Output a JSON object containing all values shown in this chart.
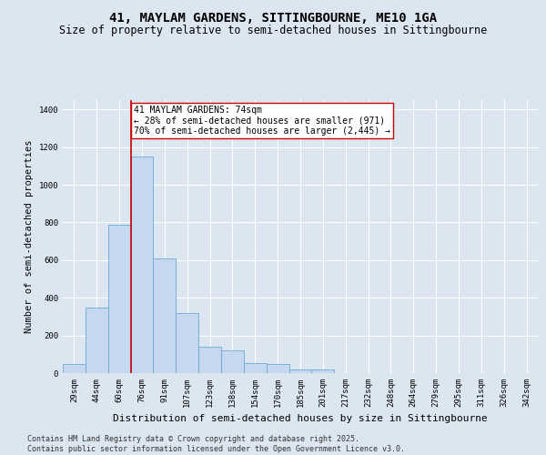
{
  "title": "41, MAYLAM GARDENS, SITTINGBOURNE, ME10 1GA",
  "subtitle": "Size of property relative to semi-detached houses in Sittingbourne",
  "xlabel": "Distribution of semi-detached houses by size in Sittingbourne",
  "ylabel": "Number of semi-detached properties",
  "categories": [
    "29sqm",
    "44sqm",
    "60sqm",
    "76sqm",
    "91sqm",
    "107sqm",
    "123sqm",
    "138sqm",
    "154sqm",
    "170sqm",
    "185sqm",
    "201sqm",
    "217sqm",
    "232sqm",
    "248sqm",
    "264sqm",
    "279sqm",
    "295sqm",
    "311sqm",
    "326sqm",
    "342sqm"
  ],
  "values": [
    50,
    350,
    790,
    1150,
    610,
    320,
    140,
    120,
    55,
    50,
    20,
    20,
    0,
    0,
    0,
    0,
    0,
    0,
    0,
    0,
    0
  ],
  "bar_color": "#c5d8ef",
  "bar_edge_color": "#6baad4",
  "vline_x": 2.5,
  "property_size": "74sqm",
  "pct_smaller": 28,
  "count_smaller": 971,
  "pct_larger": 70,
  "count_larger": 2445,
  "annotation_box_color": "#ffffff",
  "annotation_box_edge_color": "#cc0000",
  "vline_color": "#cc0000",
  "background_color": "#dce6f1",
  "plot_bg_color": "#dce6f1",
  "grid_color": "#ffffff",
  "ylim": [
    0,
    1450
  ],
  "yticks": [
    0,
    200,
    400,
    600,
    800,
    1000,
    1200,
    1400
  ],
  "footer": "Contains HM Land Registry data © Crown copyright and database right 2025.\nContains public sector information licensed under the Open Government Licence v3.0.",
  "title_fontsize": 10,
  "subtitle_fontsize": 8.5,
  "xlabel_fontsize": 8,
  "ylabel_fontsize": 7.5,
  "tick_fontsize": 6.5,
  "annotation_fontsize": 7,
  "footer_fontsize": 6
}
